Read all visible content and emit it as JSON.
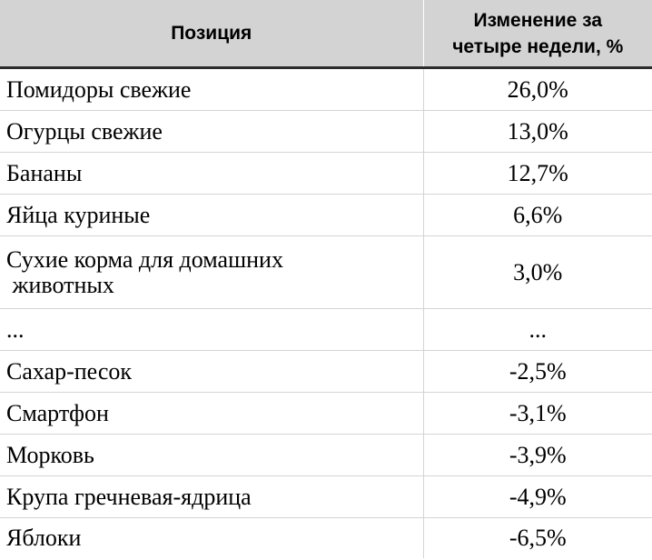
{
  "table": {
    "headers": {
      "position": "Позиция",
      "change_line1": "Изменение за",
      "change_line2": "четыре недели, %"
    },
    "rows": [
      {
        "name": [
          "Помидоры свежие"
        ],
        "value": "26,0%"
      },
      {
        "name": [
          "Огурцы свежие"
        ],
        "value": "13,0%"
      },
      {
        "name": [
          "Бананы"
        ],
        "value": "12,7%"
      },
      {
        "name": [
          "Яйца куриные"
        ],
        "value": "6,6%"
      },
      {
        "name": [
          "Сухие корма для домашних",
          " животных"
        ],
        "value": "3,0%"
      },
      {
        "name": [
          "..."
        ],
        "value": "..."
      },
      {
        "name": [
          "Сахар-песок"
        ],
        "value": "-2,5%"
      },
      {
        "name": [
          "Смартфон"
        ],
        "value": "-3,1%"
      },
      {
        "name": [
          "Морковь"
        ],
        "value": "-3,9%"
      },
      {
        "name": [
          "Крупа гречневая-ядрица"
        ],
        "value": "-4,9%"
      },
      {
        "name": [
          "Яблоки"
        ],
        "value": "-6,5%"
      }
    ]
  },
  "colors": {
    "header_bg": "#d3d3d3",
    "header_border": "#2b2b2b",
    "row_border": "#d4d4d4"
  }
}
